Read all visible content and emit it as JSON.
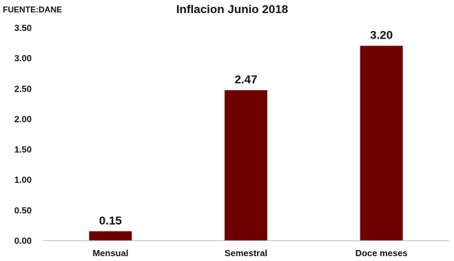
{
  "source_note": "FUENTE:DANE",
  "chart_data": {
    "type": "bar",
    "title": "Inflacion Junio 2018",
    "categories": [
      "Mensual",
      "Semestral",
      "Doce meses"
    ],
    "values": [
      0.15,
      2.47,
      3.2
    ],
    "data_labels": [
      "0.15",
      "2.47",
      "3.20"
    ],
    "ylim": [
      0,
      3.5
    ],
    "yticks": [
      "0.00",
      "0.50",
      "1.00",
      "1.50",
      "2.00",
      "2.50",
      "3.00",
      "3.50"
    ],
    "grid": false,
    "legend": "none",
    "bar_color": "#6e0000",
    "axis_color": "#bfbfbf"
  }
}
